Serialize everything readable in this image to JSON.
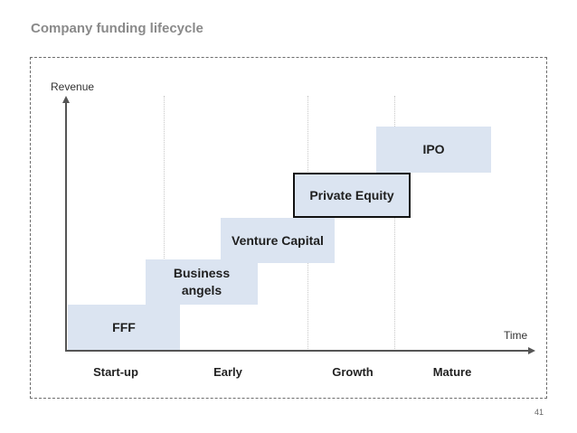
{
  "slide": {
    "title": "Company funding lifecycle",
    "page_number": "41"
  },
  "axes": {
    "y_label": "Revenue",
    "x_label": "Time"
  },
  "stages": [
    "Start-up",
    "Early",
    "Growth",
    "Mature"
  ],
  "funding_sources": [
    {
      "label": "FFF"
    },
    {
      "label": "Business angels"
    },
    {
      "label": "Venture Capital"
    },
    {
      "label": "Private Equity",
      "highlighted": true
    },
    {
      "label": "IPO"
    }
  ],
  "colors": {
    "block_fill": "#dbe4f1",
    "title": "#8a8a8a",
    "axis": "#555555",
    "highlight_border": "#111111"
  }
}
